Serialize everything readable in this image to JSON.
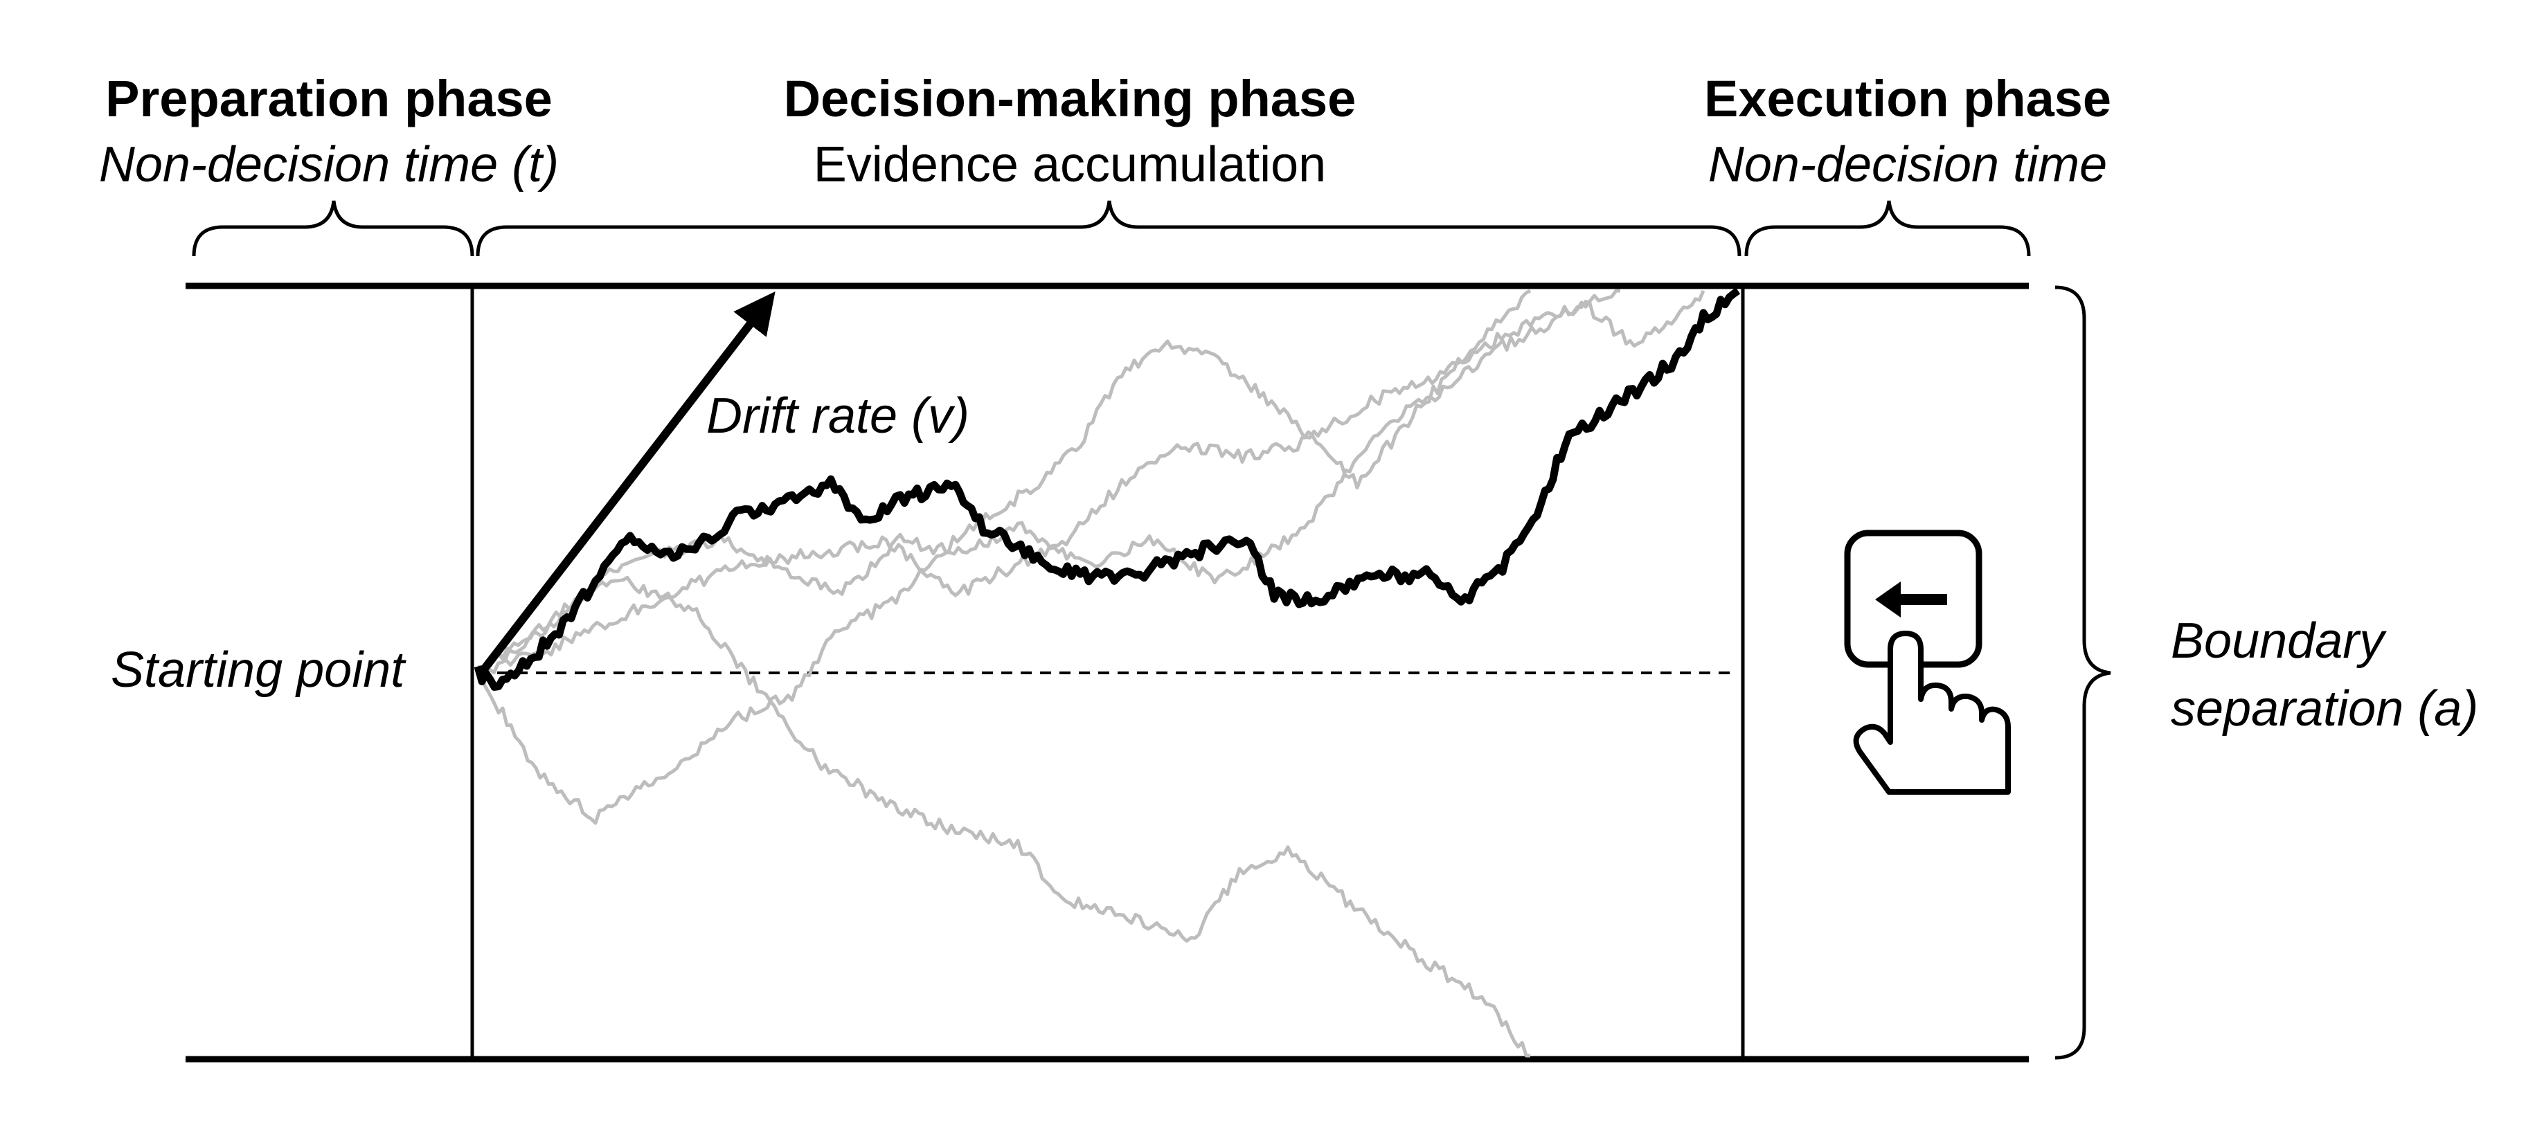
{
  "phases": {
    "preparation": {
      "title": "Preparation phase",
      "subtitle": "Non-decision time (t)"
    },
    "decision": {
      "title": "Decision-making phase",
      "subtitle": "Evidence accumulation"
    },
    "execution": {
      "title": "Execution phase",
      "subtitle": "Non-decision time"
    }
  },
  "labels": {
    "starting_point": "Starting point",
    "drift_rate": "Drift rate (v)",
    "boundary_line1": "Boundary",
    "boundary_line2": "separation (a)"
  },
  "icons": {
    "keypress": "finger-pressing-left-arrow-key-icon"
  },
  "colors": {
    "highlight_path": "#000000",
    "background_paths": "#bdbdbd",
    "boundary": "#000000"
  }
}
